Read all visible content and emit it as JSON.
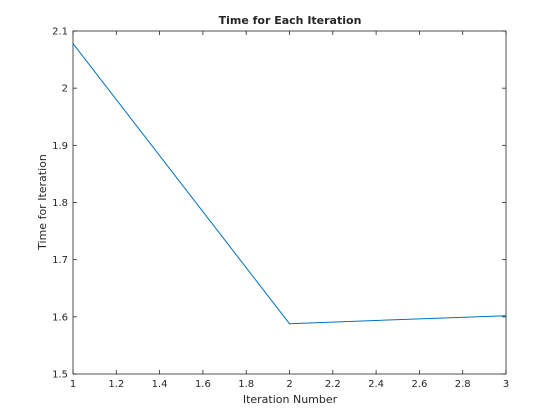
{
  "chart_data": {
    "type": "line",
    "title": "Time for Each Iteration",
    "xlabel": "Iteration Number",
    "ylabel": "Time for Iteration",
    "xlim": [
      1,
      3
    ],
    "ylim": [
      1.5,
      2.1
    ],
    "xticks": [
      "1",
      "1.2",
      "1.4",
      "1.6",
      "1.8",
      "2",
      "2.2",
      "2.4",
      "2.6",
      "2.8",
      "3"
    ],
    "yticks": [
      "1.5",
      "1.6",
      "1.7",
      "1.8",
      "1.9",
      "2",
      "2.1"
    ],
    "grid": false,
    "series": [
      {
        "color": "#0072BD",
        "x": [
          1,
          2,
          3
        ],
        "y": [
          2.078,
          1.588,
          1.602
        ]
      }
    ]
  }
}
